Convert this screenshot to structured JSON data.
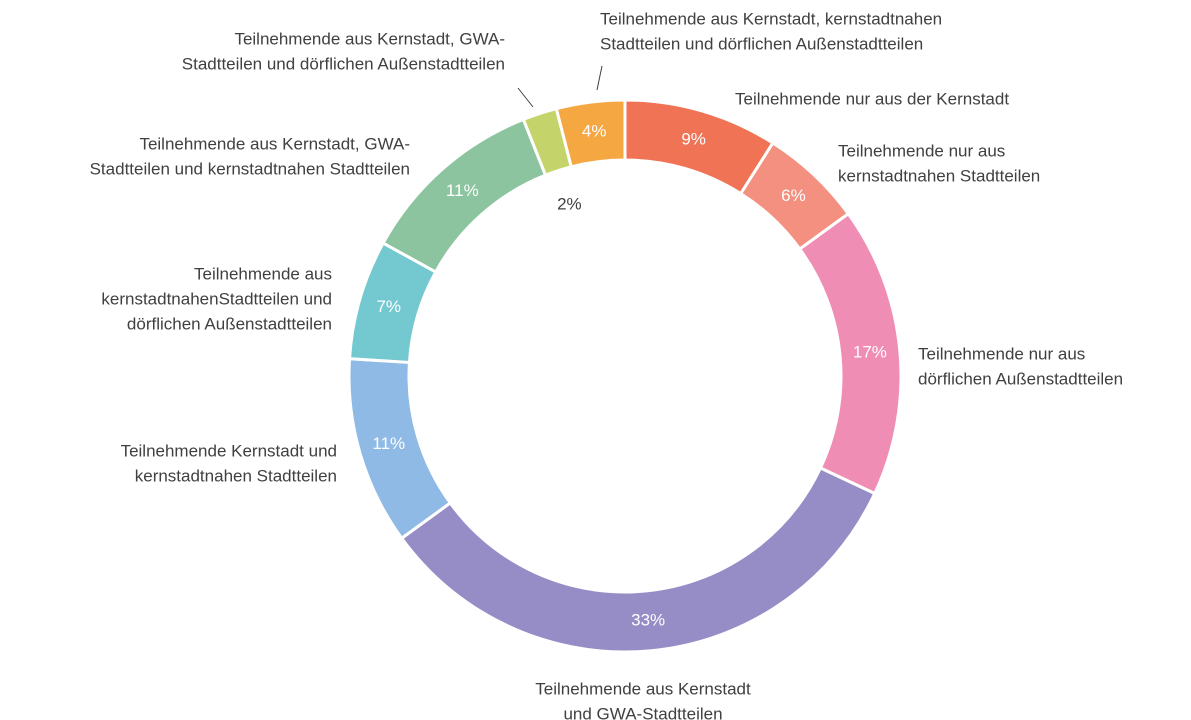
{
  "chart_data": {
    "type": "donut",
    "categories": [
      [
        "Teilnehmende nur aus der Kernstadt"
      ],
      [
        "Teilnehmende nur aus",
        "kernstadtnahen Stadtteilen"
      ],
      [
        "Teilnehmende nur aus",
        "dörflichen Außenstadtteilen"
      ],
      [
        "Teilnehmende aus Kernstadt",
        "und GWA-Stadtteilen"
      ],
      [
        "Teilnehmende Kernstadt und",
        "kernstadtnahen Stadtteilen"
      ],
      [
        "Teilnehmende aus",
        "kernstadtnahenStadtteilen und",
        "dörflichen Außenstadtteilen"
      ],
      [
        "Teilnehmende aus Kernstadt, GWA-",
        "Stadtteilen und kernstadtnahen Stadtteilen"
      ],
      [
        "Teilnehmende aus Kernstadt, GWA-",
        "Stadtteilen und dörflichen Außenstadtteilen"
      ],
      [
        "Teilnehmende aus Kernstadt, kernstadtnahen",
        "Stadtteilen und dörflichen Außenstadtteilen"
      ]
    ],
    "values": [
      9,
      6,
      17,
      33,
      11,
      7,
      11,
      2,
      4
    ],
    "value_labels": [
      "9%",
      "6%",
      "17%",
      "33%",
      "11%",
      "7%",
      "11%",
      "2%",
      "4%"
    ],
    "colors": [
      "#f07355",
      "#f4907f",
      "#f08db4",
      "#978dc6",
      "#8fbae6",
      "#74c9d0",
      "#8bc49e",
      "#c5d36b",
      "#f5a742"
    ]
  }
}
